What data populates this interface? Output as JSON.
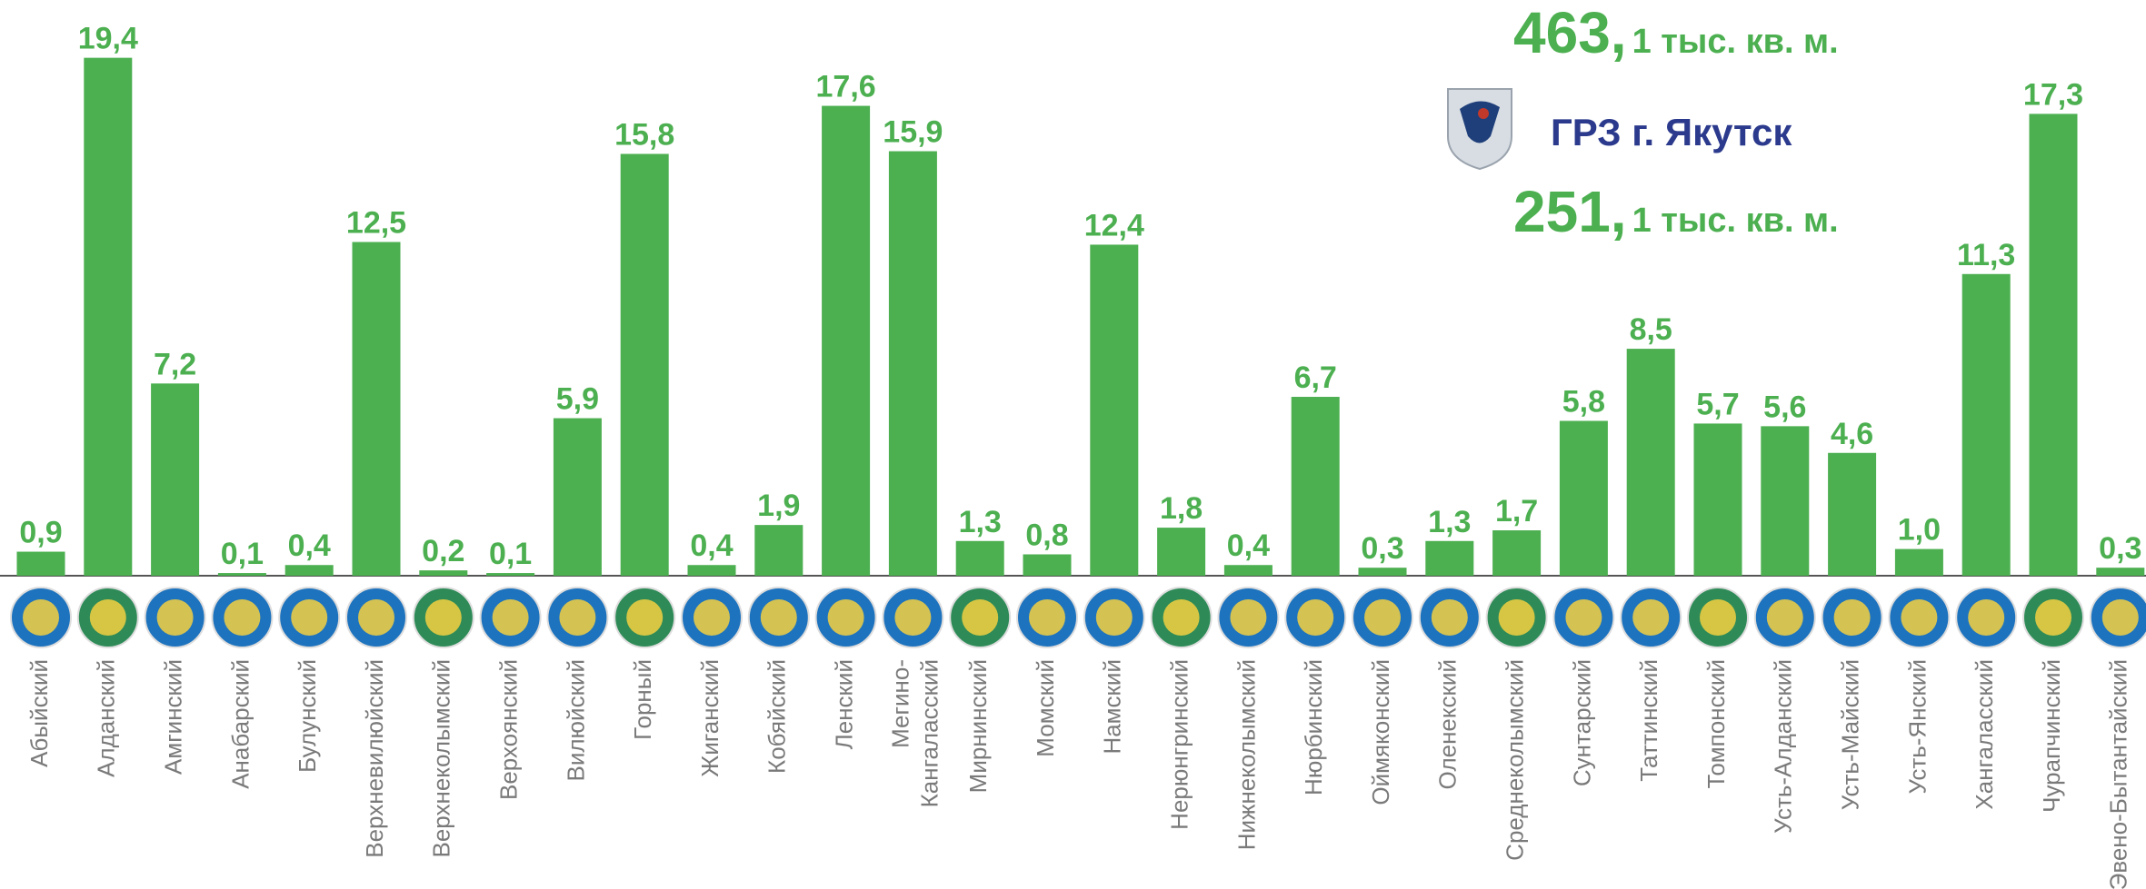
{
  "chart_data": {
    "type": "bar",
    "color": "#4caf50",
    "categories": [
      "Абыйский",
      "Алданский",
      "Амгинский",
      "Анабарский",
      "Булунский",
      "Верхневилюйский",
      "Верхнеколымский",
      "Верхоянский",
      "Вилюйский",
      "Горный",
      "Жиганский",
      "Кобяйский",
      "Ленский",
      [
        "Мегино-",
        "Кангаласский"
      ],
      "Мирнинский",
      "Момский",
      "Намский",
      "Нерюнгринский",
      "Нижнеколымский",
      "Нюрбинский",
      "Оймяконский",
      "Оленекский",
      "Среднеколымский",
      "Сунтарский",
      "Таттинский",
      "Томпонский",
      "Усть-Алданский",
      "Усть-Майский",
      "Усть-Янский",
      "Хангаласский",
      "Чурапчинский",
      "Эвено-Бытантайский"
    ],
    "values": [
      0.9,
      19.4,
      7.2,
      0.1,
      0.4,
      12.5,
      0.2,
      0.1,
      5.9,
      15.8,
      0.4,
      1.9,
      17.6,
      15.9,
      1.3,
      0.8,
      12.4,
      1.8,
      0.4,
      6.7,
      0.3,
      1.3,
      1.7,
      5.8,
      8.5,
      5.7,
      5.6,
      4.6,
      1.0,
      11.3,
      17.3,
      0.3
    ],
    "value_labels": [
      "0,9",
      "19,4",
      "7,2",
      "0,1",
      "0,4",
      "12,5",
      "0,2",
      "0,1",
      "5,9",
      "15,8",
      "0,4",
      "1,9",
      "17,6",
      "15,9",
      "1,3",
      "0,8",
      "12,4",
      "1,8",
      "0,4",
      "6,7",
      "0,3",
      "1,3",
      "1,7",
      "5,8",
      "8,5",
      "5,7",
      "5,6",
      "4,6",
      "1,0",
      "11,3",
      "17,3",
      "0,3"
    ],
    "annotations": [
      {
        "big": "463,",
        "small": "1 тыс. кв. м."
      },
      {
        "text": "ГРЗ г. Якутск"
      },
      {
        "big": "251,",
        "small": "1 тыс. кв. м."
      }
    ]
  }
}
